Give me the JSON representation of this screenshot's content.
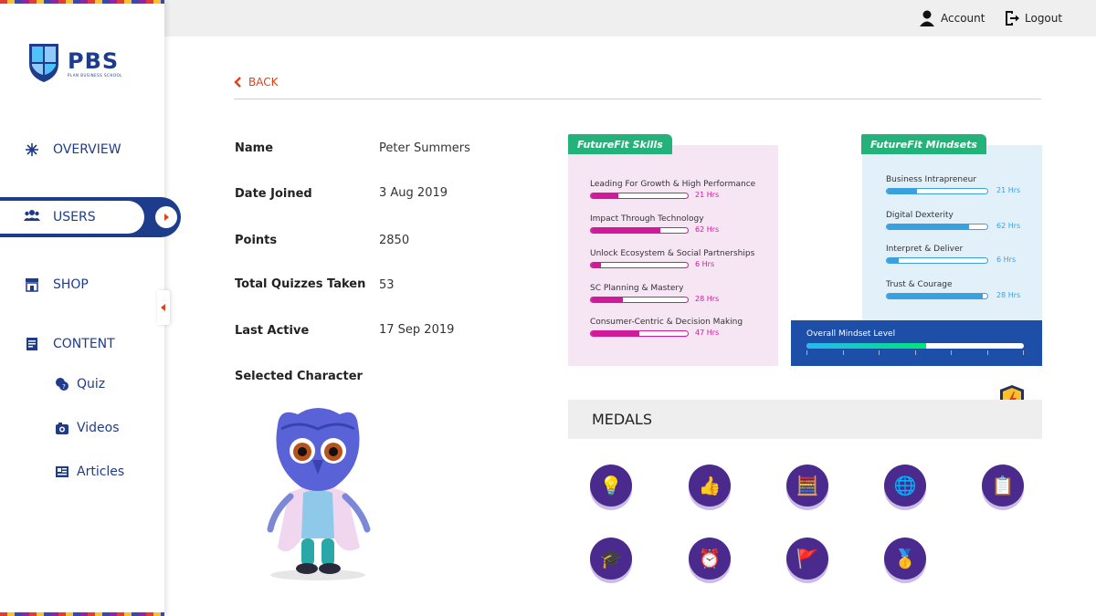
{
  "brand": {
    "name": "PBS",
    "subtitle": "PLAN BUSINESS SCHOOL"
  },
  "sidebar": {
    "items": [
      {
        "label": "OVERVIEW",
        "icon": "overview-icon"
      },
      {
        "label": "USERS",
        "icon": "users-icon",
        "active": true
      },
      {
        "label": "SHOP",
        "icon": "shop-icon"
      },
      {
        "label": "CONTENT",
        "icon": "content-icon"
      }
    ],
    "sub_items": [
      {
        "label": "Quiz",
        "icon": "quiz-icon"
      },
      {
        "label": "Videos",
        "icon": "videos-icon"
      },
      {
        "label": "Articles",
        "icon": "articles-icon"
      }
    ]
  },
  "header": {
    "account_label": "Account",
    "logout_label": "Logout"
  },
  "back_label": "BACK",
  "profile": {
    "fields": [
      {
        "label": "Name",
        "value": "Peter Summers"
      },
      {
        "label": "Date Joined",
        "value": "3 Aug 2019"
      },
      {
        "label": "Points",
        "value": "2850"
      },
      {
        "label": "Total Quizzes Taken",
        "value": "53"
      },
      {
        "label": "Last Active",
        "value": "17 Sep 2019"
      },
      {
        "label": "Selected Character",
        "value": ""
      }
    ]
  },
  "skills": {
    "title": "FutureFit Skills",
    "items": [
      {
        "name": "Leading For Growth & High Performance",
        "hours": "21 Hrs",
        "progress": 0.28
      },
      {
        "name": "Impact Through Technology",
        "hours": "62 Hrs",
        "progress": 0.72
      },
      {
        "name": "Unlock Ecosystem & Social Partnerships",
        "hours": "6 Hrs",
        "progress": 0.1
      },
      {
        "name": "SC Planning & Mastery",
        "hours": "28 Hrs",
        "progress": 0.33
      },
      {
        "name": "Consumer-Centric & Decision Making",
        "hours": "47 Hrs",
        "progress": 0.5
      }
    ]
  },
  "mindsets": {
    "title": "FutureFit Mindsets",
    "items": [
      {
        "name": "Business Intrapreneur",
        "hours": "21 Hrs",
        "progress": 0.3
      },
      {
        "name": "Digital Dexterity",
        "hours": "62 Hrs",
        "progress": 0.82
      },
      {
        "name": "Interpret & Deliver",
        "hours": "6 Hrs",
        "progress": 0.12
      },
      {
        "name": "Trust & Courage",
        "hours": "28 Hrs",
        "progress": 0.95
      }
    ],
    "overall_label": "Overall Mindset Level",
    "overall_progress": 0.55
  },
  "medals": {
    "title": "MEDALS",
    "items": [
      {
        "icon": "lightbulb-icon",
        "glyph": "💡"
      },
      {
        "icon": "thumbs-up-icon",
        "glyph": "👍"
      },
      {
        "icon": "calculator-icon",
        "glyph": "🧮"
      },
      {
        "icon": "globe-icon",
        "glyph": "🌐"
      },
      {
        "icon": "clipboard-icon",
        "glyph": "📋"
      },
      {
        "icon": "graduation-cap-icon",
        "glyph": "🎓"
      },
      {
        "icon": "clock-icon",
        "glyph": "⏰"
      },
      {
        "icon": "mountain-flag-icon",
        "glyph": "🚩"
      },
      {
        "icon": "first-place-medal-icon",
        "glyph": "🥇"
      }
    ]
  },
  "colors": {
    "brand_blue": "#1e3c8c",
    "accent_red": "#e0401a",
    "skill_magenta": "#d01a9a",
    "mindset_blue": "#3ba0df",
    "tag_green": "#22b27a",
    "medal_purple": "#4a2a8c"
  }
}
